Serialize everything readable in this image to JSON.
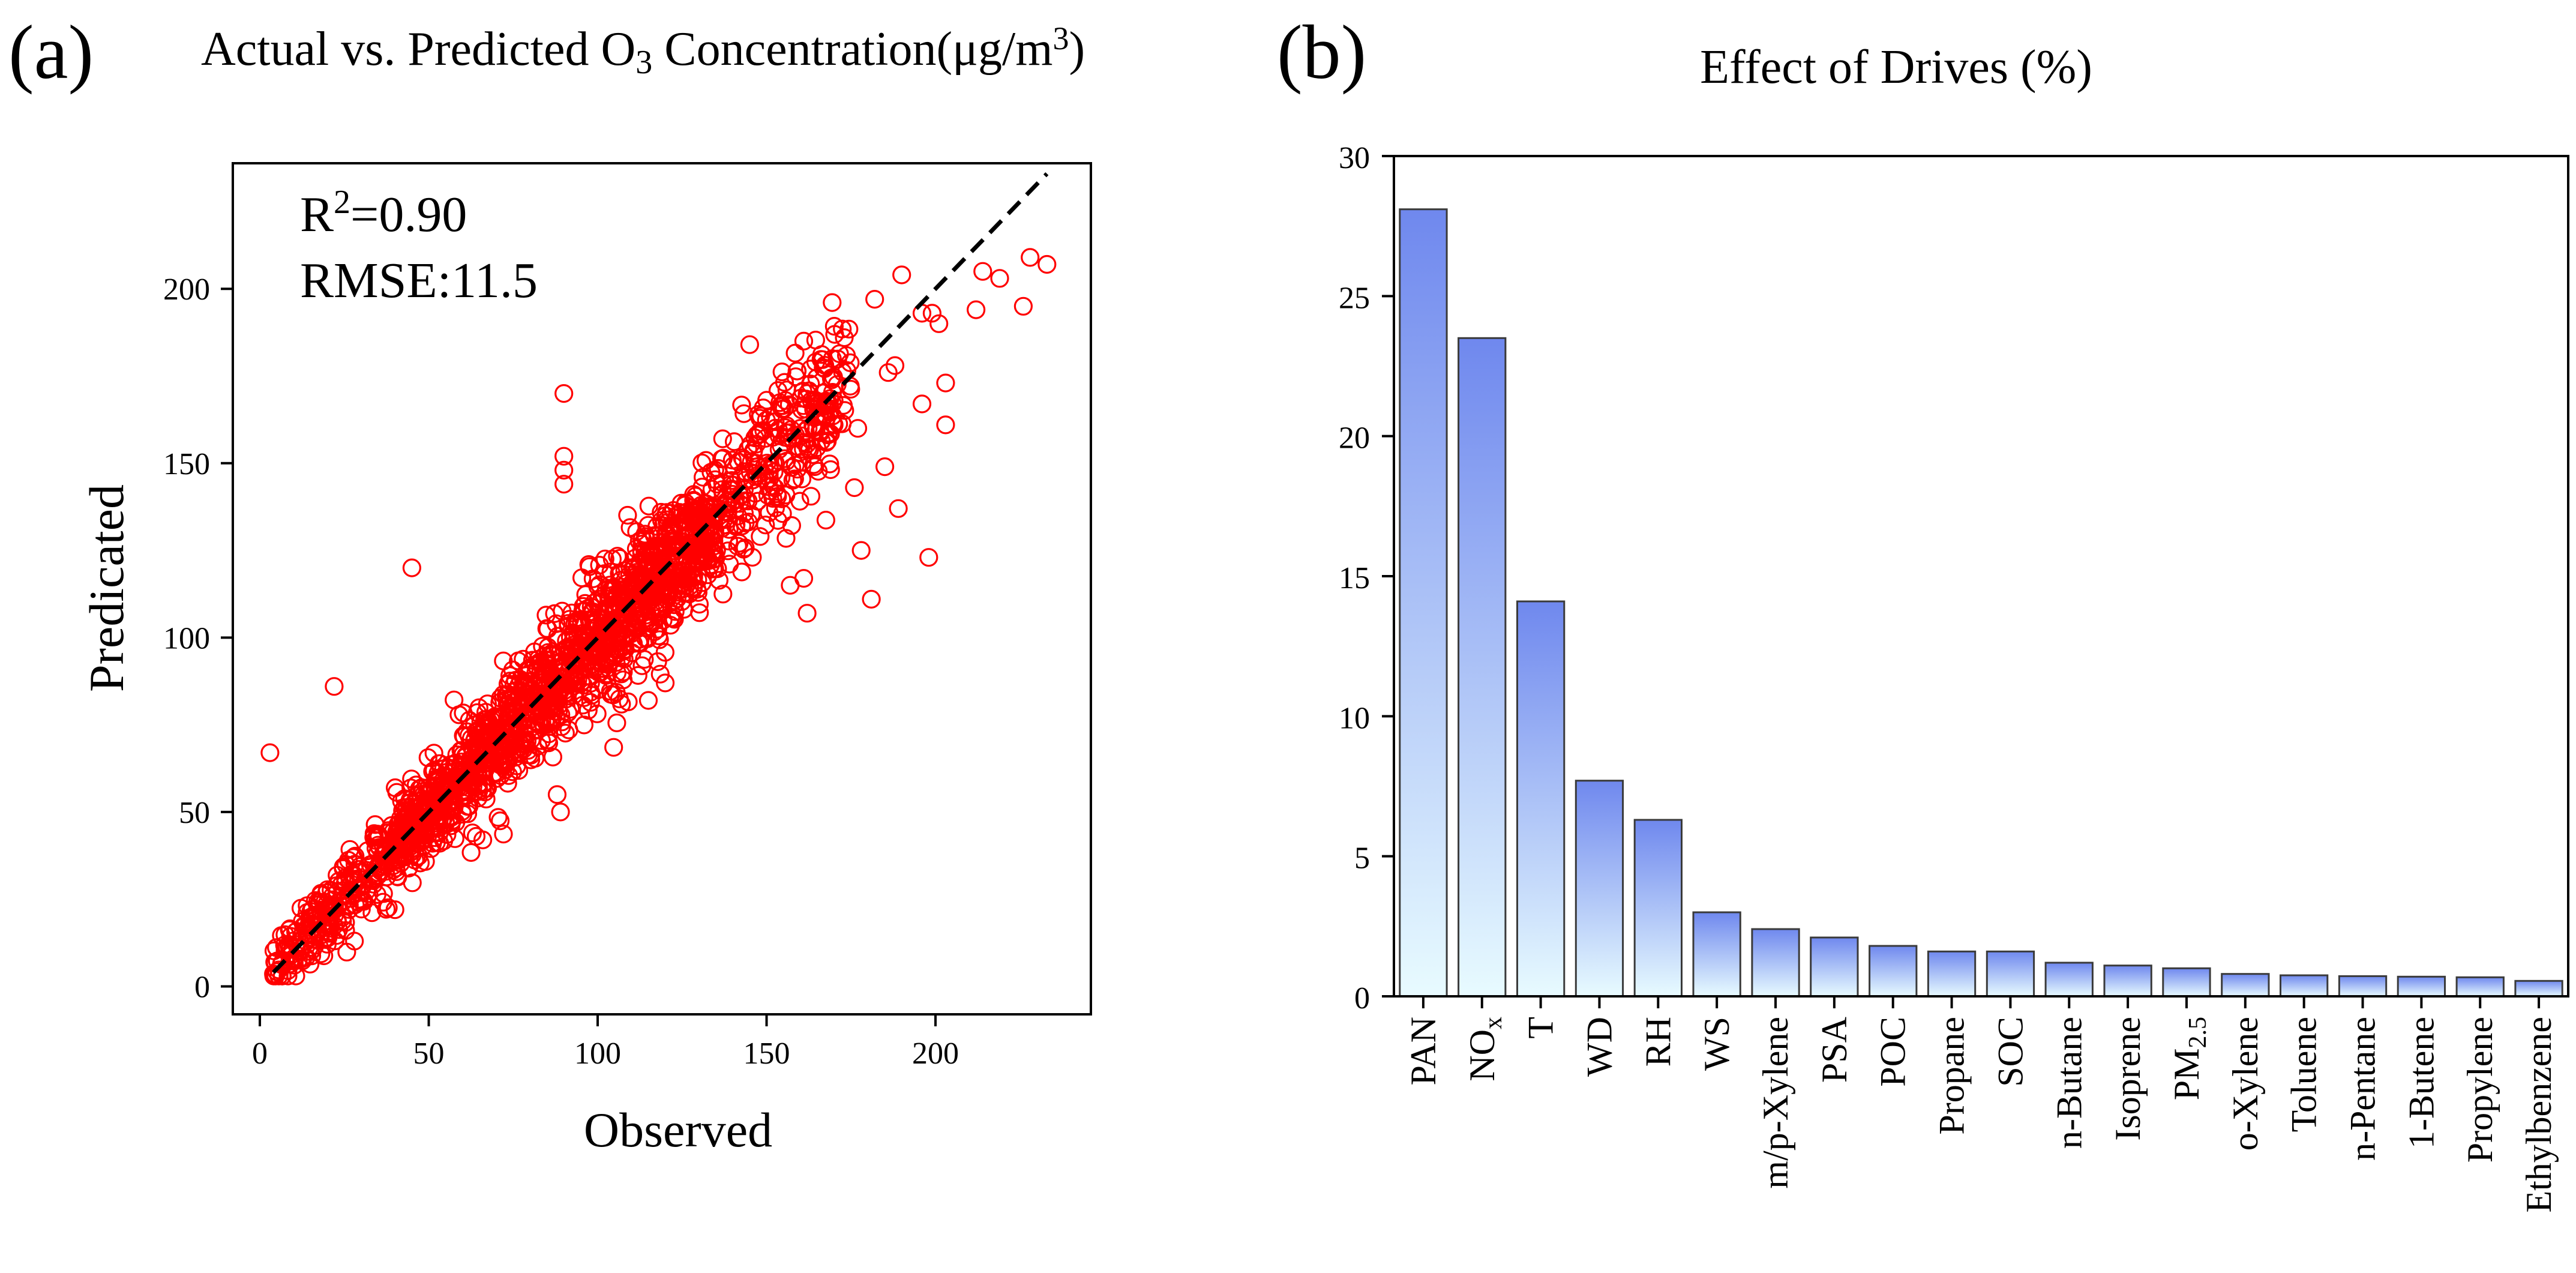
{
  "panels": {
    "a": {
      "label": "(a)",
      "title_prefix": "Actual vs. Predicted O",
      "title_sub": "3",
      "title_mid": " Concentration(μg/m",
      "title_sup": "3",
      "title_end": ")",
      "annotation_r2_prefix": "R",
      "annotation_r2_sup": "2",
      "annotation_r2_value": "=0.90",
      "annotation_rmse": "RMSE:11.5"
    },
    "b": {
      "label": "(b)",
      "title": "Effect of Drives (%)"
    }
  },
  "colors": {
    "scatter_marker": "#ff0000",
    "fit_line": "#000000",
    "bar_top": "#6f88ee",
    "bar_bottom": "#e8fbff",
    "bar_edge": "#3a3a3a"
  },
  "chart_data": [
    {
      "type": "scatter",
      "title": "Actual vs. Predicted O3 Concentration(μg/m3)",
      "xlabel": "Observed",
      "ylabel": "Predicated",
      "xlim": [
        -8,
        246
      ],
      "ylim": [
        -8,
        236
      ],
      "xticks": [
        0,
        50,
        100,
        150,
        200
      ],
      "yticks": [
        0,
        50,
        100,
        150,
        200
      ],
      "r2": 0.9,
      "rmse": 11.5,
      "reference_line": {
        "x": [
          4,
          233
        ],
        "y": [
          4,
          233
        ]
      },
      "points_dense_band": {
        "n": 1900,
        "x_range": [
          4,
          175
        ],
        "slope": 0.99,
        "intercept": 0.5,
        "noise_sd": 7.5
      },
      "points_outliers": [
        [
          3,
          67
        ],
        [
          22,
          86
        ],
        [
          45,
          120
        ],
        [
          90,
          170
        ],
        [
          90,
          152
        ],
        [
          90,
          148
        ],
        [
          90,
          144
        ],
        [
          89,
          50
        ],
        [
          88,
          55
        ],
        [
          178,
          125
        ],
        [
          181,
          111
        ],
        [
          198,
          123
        ],
        [
          170,
          161
        ],
        [
          186,
          176
        ],
        [
          188,
          178
        ],
        [
          190,
          204
        ],
        [
          196,
          193
        ],
        [
          199,
          193
        ],
        [
          201,
          190
        ],
        [
          203,
          173
        ],
        [
          203,
          161
        ],
        [
          196,
          167
        ],
        [
          212,
          194
        ],
        [
          214,
          205
        ],
        [
          219,
          203
        ],
        [
          226,
          195
        ],
        [
          228,
          209
        ],
        [
          233,
          207
        ],
        [
          182,
          197
        ],
        [
          173,
          186
        ],
        [
          161,
          185
        ],
        [
          163,
          177
        ],
        [
          170,
          168
        ],
        [
          177,
          160
        ],
        [
          176,
          143
        ],
        [
          185,
          149
        ],
        [
          189,
          137
        ],
        [
          145,
          184
        ],
        [
          160,
          160
        ],
        [
          162,
          170
        ],
        [
          156,
          171
        ],
        [
          152,
          150
        ],
        [
          137,
          157
        ],
        [
          157,
          115
        ],
        [
          161,
          117
        ],
        [
          162,
          107
        ],
        [
          120,
          87
        ],
        [
          115,
          82
        ],
        [
          66,
          42
        ],
        [
          58,
          47
        ],
        [
          40,
          22
        ],
        [
          28,
          13
        ],
        [
          15,
          10
        ],
        [
          10,
          8
        ]
      ]
    },
    {
      "type": "bar",
      "title": "Effect of Drives (%)",
      "ylim": [
        0,
        30
      ],
      "yticks": [
        0,
        5,
        10,
        15,
        20,
        25,
        30
      ],
      "categories": [
        "PAN",
        "NOx",
        "T",
        "WD",
        "RH",
        "WS",
        "m/p-Xylene",
        "PSA",
        "POC",
        "Propane",
        "SOC",
        "n-Butane",
        "Isoprene",
        "PM2.5",
        "o-Xylene",
        "Toluene",
        "n-Pentane",
        "1-Butene",
        "Propylene",
        "Ethylbenzene"
      ],
      "category_base": [
        "PAN",
        "NO",
        "T",
        "WD",
        "RH",
        "WS",
        "m/p-Xylene",
        "PSA",
        "POC",
        "Propane",
        "SOC",
        "n-Butane",
        "Isoprene",
        "PM",
        "o-Xylene",
        "Toluene",
        "n-Pentane",
        "1-Butene",
        "Propylene",
        "Ethylbenzene"
      ],
      "category_sub": [
        "",
        "x",
        "",
        "",
        "",
        "",
        "",
        "",
        "",
        "",
        "",
        "",
        "",
        "2.5",
        "",
        "",
        "",
        "",
        "",
        ""
      ],
      "values": [
        28.1,
        23.5,
        14.1,
        7.7,
        6.3,
        3.0,
        2.4,
        2.1,
        1.8,
        1.6,
        1.6,
        1.2,
        1.1,
        1.0,
        0.8,
        0.75,
        0.72,
        0.7,
        0.68,
        0.55
      ]
    }
  ]
}
